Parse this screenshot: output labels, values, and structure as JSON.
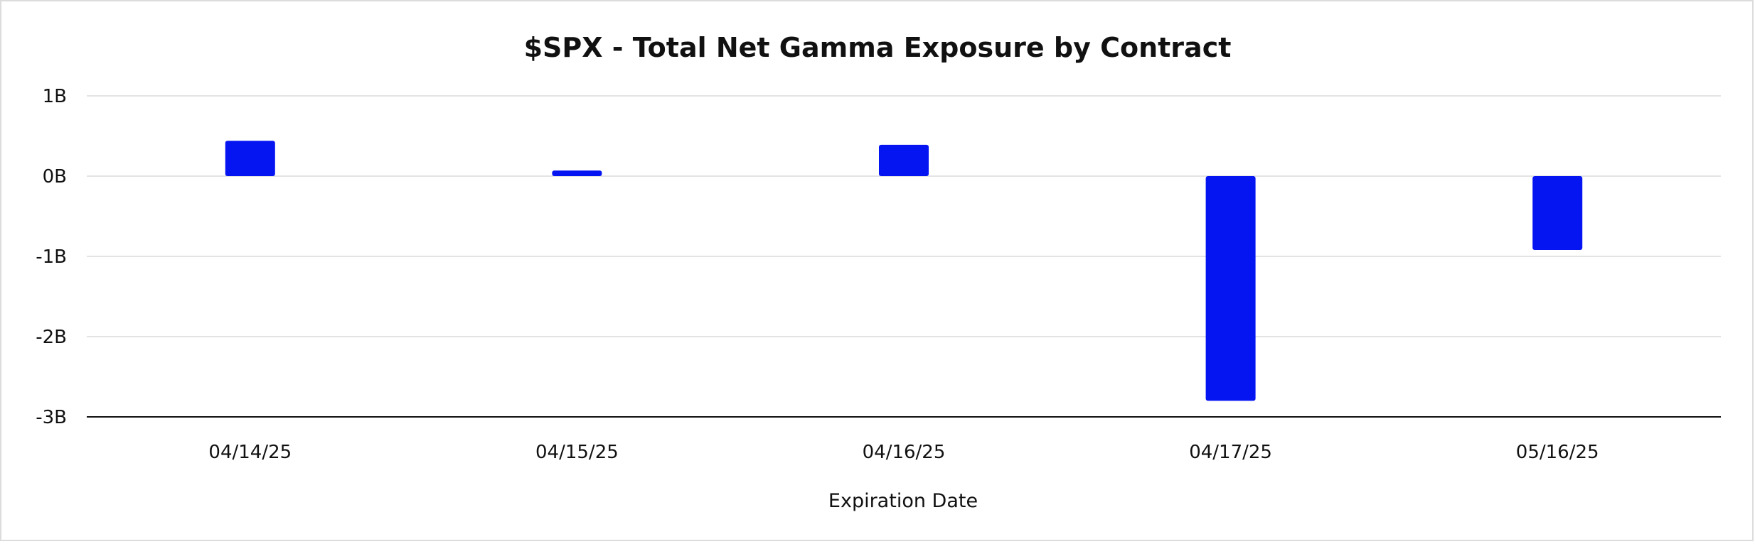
{
  "chart_data": {
    "type": "bar",
    "title": "$SPX - Total Net Gamma Exposure by Contract",
    "xlabel": "Expiration Date",
    "ylabel": "",
    "categories": [
      "04/14/25",
      "04/15/25",
      "04/16/25",
      "04/17/25",
      "05/16/25"
    ],
    "series": [
      {
        "values": [
          0.44,
          0.07,
          0.39,
          -2.8,
          -0.92
        ]
      }
    ],
    "ylim": [
      -3,
      1
    ],
    "yticks": [
      1,
      0,
      -1,
      -2,
      -3
    ],
    "ytick_labels": [
      "1B",
      "0B",
      "-1B",
      "-2B",
      "-3B"
    ],
    "grid": true,
    "legend": "none",
    "bar_color": "#0515f2"
  }
}
